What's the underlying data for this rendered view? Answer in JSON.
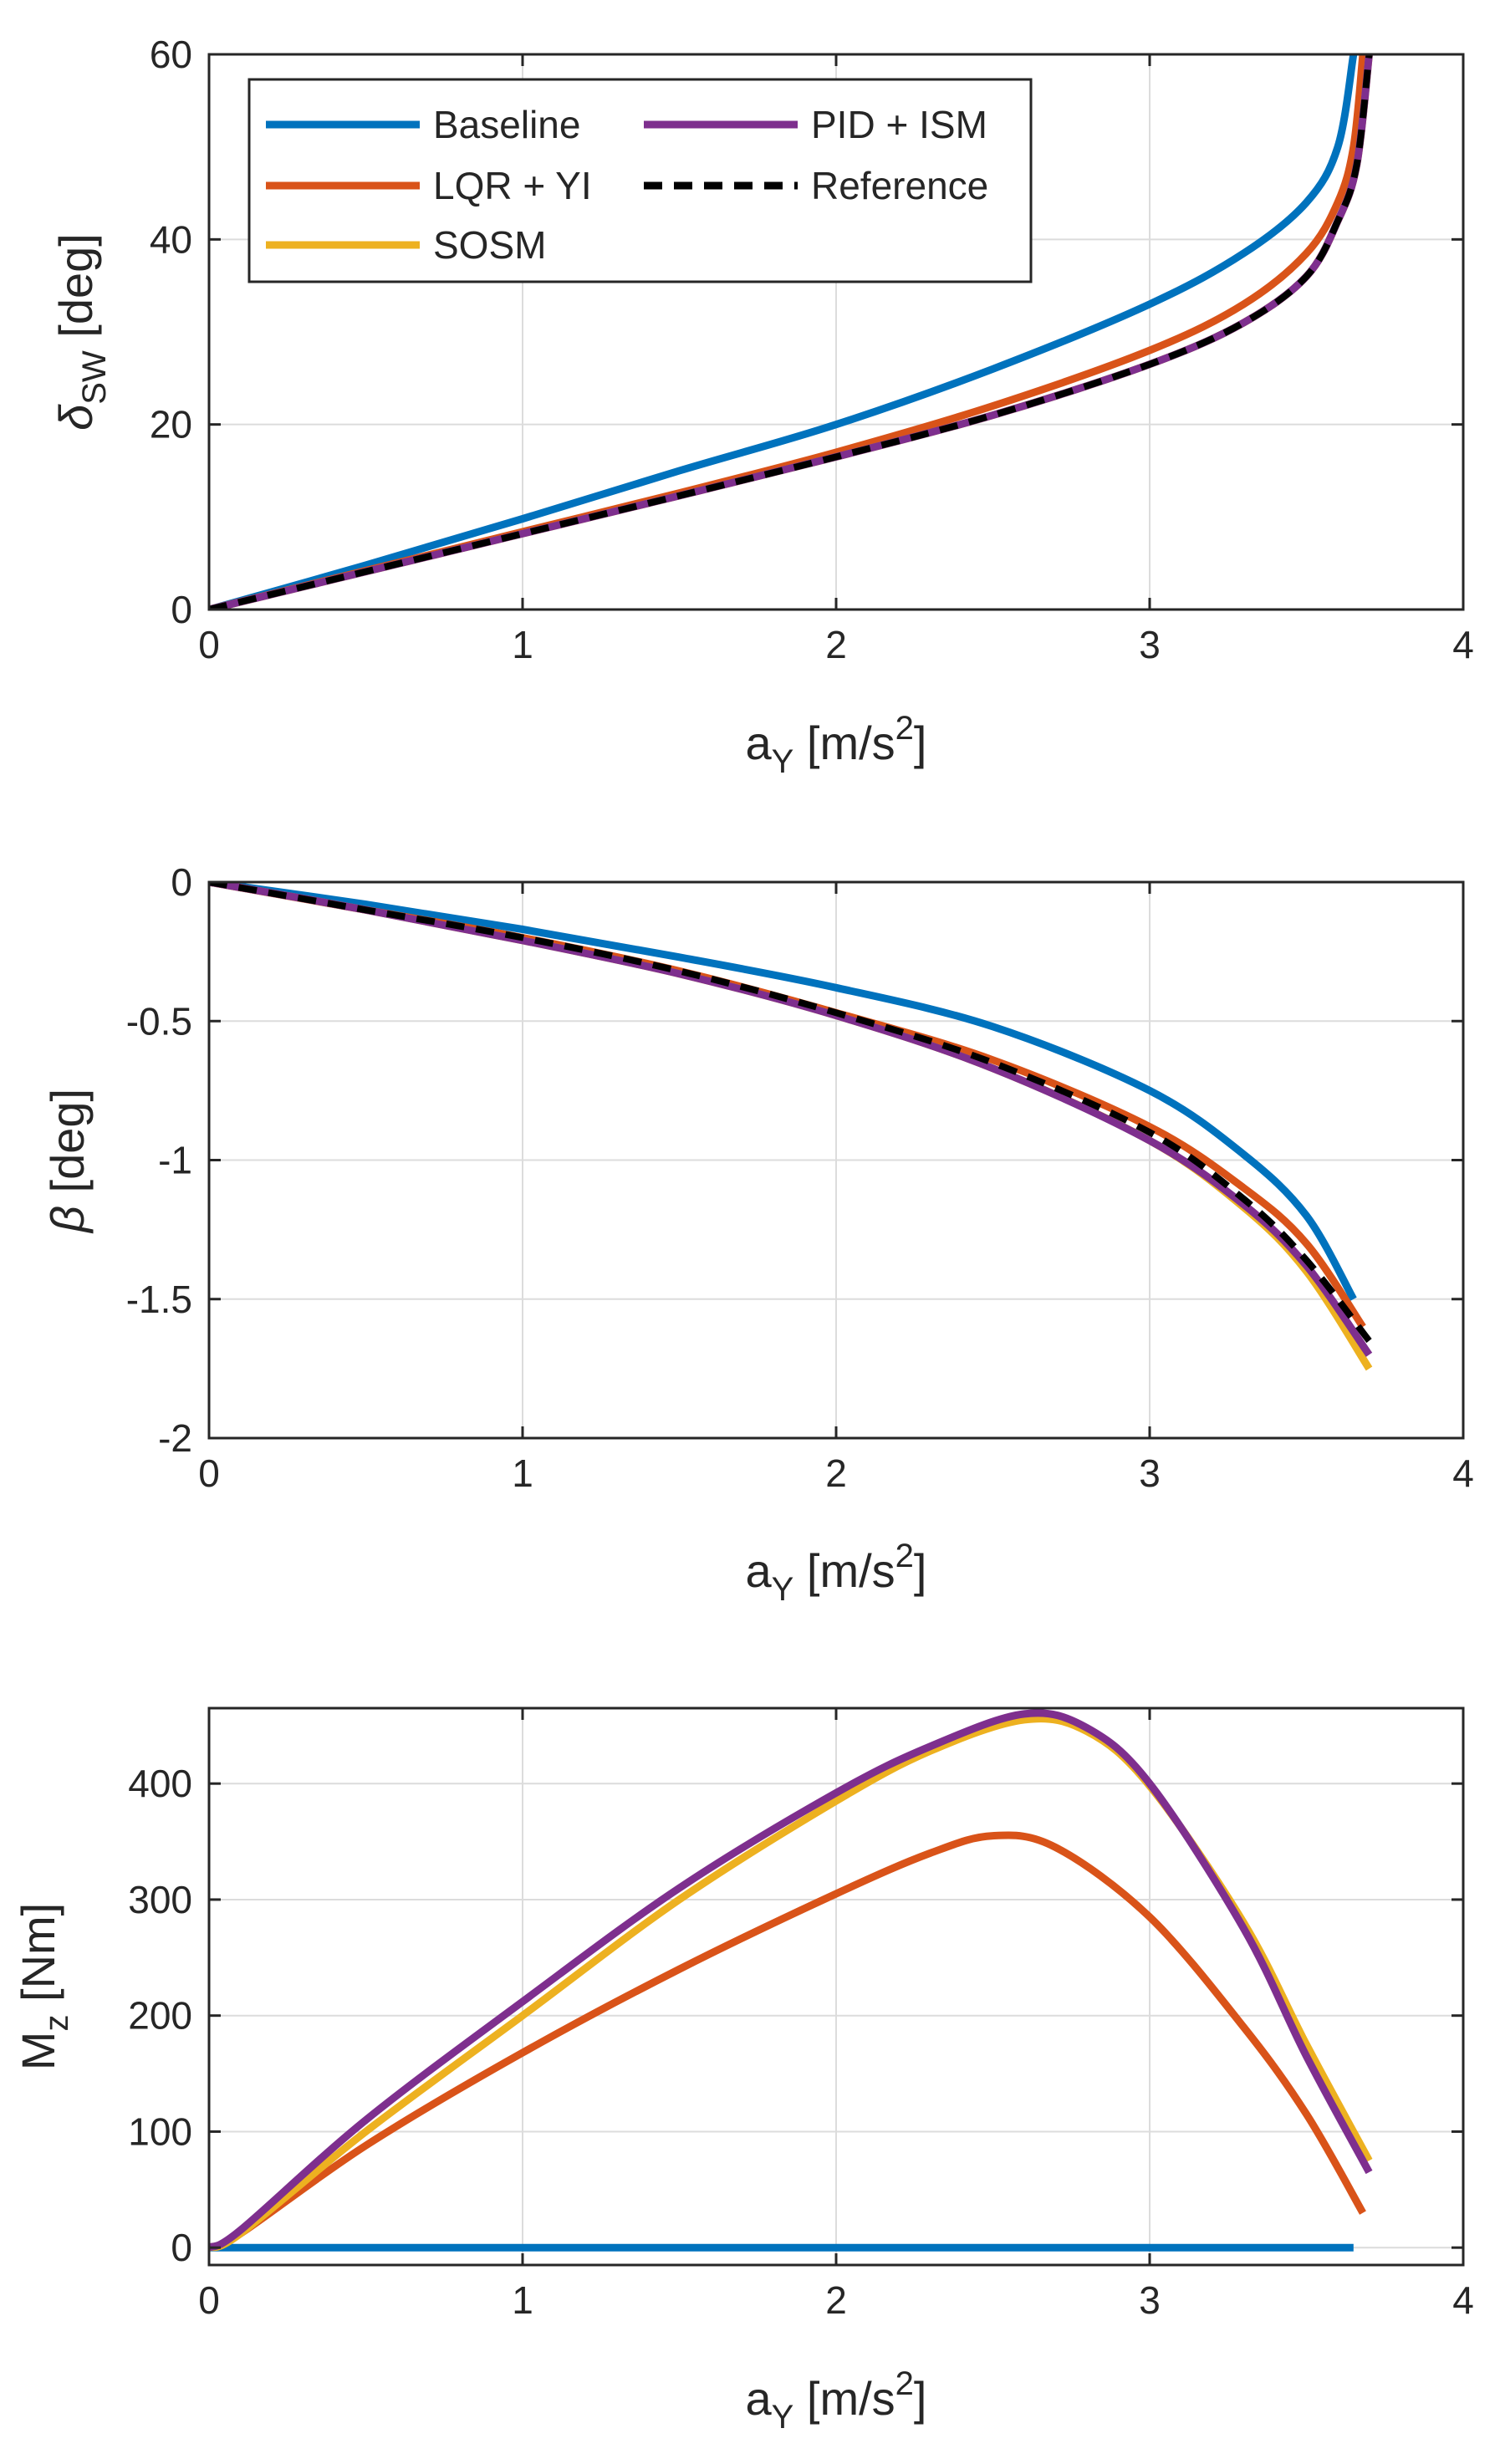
{
  "colors": {
    "baseline": "#0072BD",
    "lqr": "#D95319",
    "sosm": "#EDB120",
    "pid": "#7E2F8E",
    "reference": "#000000",
    "grid": "#DCDCDC",
    "axes": "#262626"
  },
  "legend": {
    "entries": [
      "Baseline",
      "LQR + YI",
      "SOSM",
      "PID + ISM",
      "Reference"
    ]
  },
  "chart_data": [
    {
      "type": "line",
      "id": "steering",
      "title": "",
      "xlabel": {
        "main": "a",
        "sub": "Y",
        "unit": " [m/s",
        "sup": "2",
        "close": "]"
      },
      "ylabel": {
        "main": "δ",
        "sub": "SW",
        "unit": " [deg]"
      },
      "xlim": [
        0,
        4
      ],
      "ylim": [
        0,
        60
      ],
      "xticks": [
        0,
        1,
        2,
        3,
        4
      ],
      "yticks": [
        0,
        20,
        40,
        60
      ],
      "xtick_labels": [
        "0",
        "1",
        "2",
        "3",
        "4"
      ],
      "ytick_labels": [
        "0",
        "20",
        "40",
        "60"
      ],
      "grid": true,
      "legend_location": "top-left",
      "series": [
        {
          "name": "Baseline",
          "color_key": "baseline",
          "style": "solid",
          "x": [
            0,
            0.5,
            1,
            1.5,
            2,
            2.5,
            3,
            3.3,
            3.5,
            3.6,
            3.65
          ],
          "y": [
            0,
            4.8,
            9.8,
            15,
            20,
            26,
            33,
            38.5,
            44,
            50,
            60
          ]
        },
        {
          "name": "LQR + YI",
          "color_key": "lqr",
          "style": "solid",
          "x": [
            0,
            0.5,
            1,
            1.5,
            2,
            2.5,
            3,
            3.3,
            3.5,
            3.6,
            3.65,
            3.68
          ],
          "y": [
            0,
            4.2,
            8.4,
            12.6,
            17,
            22,
            28,
            33,
            38.5,
            44,
            50,
            60
          ]
        },
        {
          "name": "SOSM",
          "color_key": "sosm",
          "style": "solid",
          "x": [
            0,
            0.5,
            1,
            1.5,
            2,
            2.5,
            3,
            3.3,
            3.5,
            3.6,
            3.66,
            3.7
          ],
          "y": [
            0,
            4.1,
            8.2,
            12.3,
            16.5,
            21,
            26.5,
            31,
            36,
            42,
            48,
            60
          ]
        },
        {
          "name": "PID + ISM",
          "color_key": "pid",
          "style": "solid",
          "x": [
            0,
            0.5,
            1,
            1.5,
            2,
            2.5,
            3,
            3.3,
            3.5,
            3.6,
            3.66,
            3.7
          ],
          "y": [
            0,
            4.1,
            8.2,
            12.3,
            16.5,
            21,
            26.5,
            31,
            36,
            42,
            48,
            60
          ]
        },
        {
          "name": "Reference",
          "color_key": "reference",
          "style": "dashed",
          "x": [
            0,
            0.5,
            1,
            1.5,
            2,
            2.5,
            3,
            3.3,
            3.5,
            3.6,
            3.66,
            3.7
          ],
          "y": [
            0,
            4.1,
            8.2,
            12.3,
            16.5,
            21,
            26.5,
            31,
            36,
            42,
            48,
            60
          ]
        }
      ]
    },
    {
      "type": "line",
      "id": "sideslip",
      "title": "",
      "xlabel": {
        "main": "a",
        "sub": "Y",
        "unit": " [m/s",
        "sup": "2",
        "close": "]"
      },
      "ylabel": {
        "main": "β",
        "sub": "",
        "unit": " [deg]"
      },
      "xlim": [
        0,
        4
      ],
      "ylim": [
        -2,
        0
      ],
      "xticks": [
        0,
        1,
        2,
        3,
        4
      ],
      "yticks": [
        -2,
        -1.5,
        -1,
        -0.5,
        0
      ],
      "xtick_labels": [
        "0",
        "1",
        "2",
        "3",
        "4"
      ],
      "ytick_labels": [
        "-2",
        "-1.5",
        "-1",
        "-0.5",
        "0"
      ],
      "grid": true,
      "series": [
        {
          "name": "Baseline",
          "color_key": "baseline",
          "style": "solid",
          "x": [
            0,
            0.5,
            1,
            1.5,
            2,
            2.5,
            3,
            3.3,
            3.5,
            3.65
          ],
          "y": [
            0,
            -0.08,
            -0.17,
            -0.27,
            -0.38,
            -0.52,
            -0.75,
            -0.98,
            -1.2,
            -1.5
          ]
        },
        {
          "name": "LQR + YI",
          "color_key": "lqr",
          "style": "solid",
          "x": [
            0,
            0.5,
            1,
            1.5,
            2,
            2.5,
            3,
            3.3,
            3.5,
            3.68
          ],
          "y": [
            0,
            -0.1,
            -0.2,
            -0.32,
            -0.47,
            -0.64,
            -0.88,
            -1.1,
            -1.3,
            -1.6
          ]
        },
        {
          "name": "SOSM",
          "color_key": "sosm",
          "style": "solid",
          "x": [
            0,
            0.5,
            1,
            1.5,
            2,
            2.5,
            3,
            3.3,
            3.5,
            3.7
          ],
          "y": [
            0,
            -0.1,
            -0.21,
            -0.33,
            -0.48,
            -0.67,
            -0.93,
            -1.17,
            -1.4,
            -1.75
          ]
        },
        {
          "name": "PID + ISM",
          "color_key": "pid",
          "style": "solid",
          "x": [
            0,
            0.5,
            1,
            1.5,
            2,
            2.5,
            3,
            3.3,
            3.5,
            3.7
          ],
          "y": [
            0,
            -0.1,
            -0.21,
            -0.33,
            -0.48,
            -0.67,
            -0.93,
            -1.16,
            -1.38,
            -1.7
          ]
        },
        {
          "name": "Reference",
          "color_key": "reference",
          "style": "dashed",
          "x": [
            0,
            0.5,
            1,
            1.5,
            2,
            2.5,
            3,
            3.3,
            3.5,
            3.7
          ],
          "y": [
            0,
            -0.1,
            -0.2,
            -0.32,
            -0.47,
            -0.65,
            -0.9,
            -1.14,
            -1.36,
            -1.65
          ]
        }
      ]
    },
    {
      "type": "line",
      "id": "yaw-moment",
      "title": "",
      "xlabel": {
        "main": "a",
        "sub": "Y",
        "unit": " [m/s",
        "sup": "2",
        "close": "]"
      },
      "ylabel": {
        "main": "M",
        "sub": "z",
        "unit": " [Nm]"
      },
      "xlim": [
        0,
        4
      ],
      "ylim": [
        -15,
        465
      ],
      "xticks": [
        0,
        1,
        2,
        3,
        4
      ],
      "yticks": [
        0,
        100,
        200,
        300,
        400
      ],
      "xtick_labels": [
        "0",
        "1",
        "2",
        "3",
        "4"
      ],
      "ytick_labels": [
        "0",
        "100",
        "200",
        "300",
        "400"
      ],
      "grid": true,
      "series": [
        {
          "name": "Baseline",
          "color_key": "baseline",
          "style": "solid",
          "x": [
            0,
            1,
            2,
            3,
            3.65
          ],
          "y": [
            0,
            0,
            0,
            0,
            0
          ]
        },
        {
          "name": "LQR + YI",
          "color_key": "lqr",
          "style": "solid",
          "x": [
            0,
            0.1,
            0.5,
            1,
            1.5,
            2,
            2.3,
            2.5,
            2.7,
            3,
            3.3,
            3.5,
            3.68
          ],
          "y": [
            0,
            12,
            88,
            168,
            240,
            305,
            340,
            355,
            345,
            285,
            190,
            115,
            30
          ]
        },
        {
          "name": "SOSM",
          "color_key": "sosm",
          "style": "solid",
          "x": [
            0,
            0.1,
            0.5,
            1,
            1.5,
            2,
            2.3,
            2.6,
            2.8,
            3,
            3.3,
            3.5,
            3.7
          ],
          "y": [
            0,
            12,
            100,
            200,
            300,
            385,
            428,
            455,
            445,
            398,
            280,
            175,
            75
          ]
        },
        {
          "name": "PID + ISM",
          "color_key": "pid",
          "style": "solid",
          "x": [
            0,
            0.1,
            0.5,
            1,
            1.5,
            2,
            2.3,
            2.6,
            2.8,
            3,
            3.3,
            3.5,
            3.7
          ],
          "y": [
            0,
            15,
            110,
            212,
            310,
            392,
            432,
            460,
            448,
            400,
            275,
            165,
            65
          ]
        }
      ]
    }
  ]
}
